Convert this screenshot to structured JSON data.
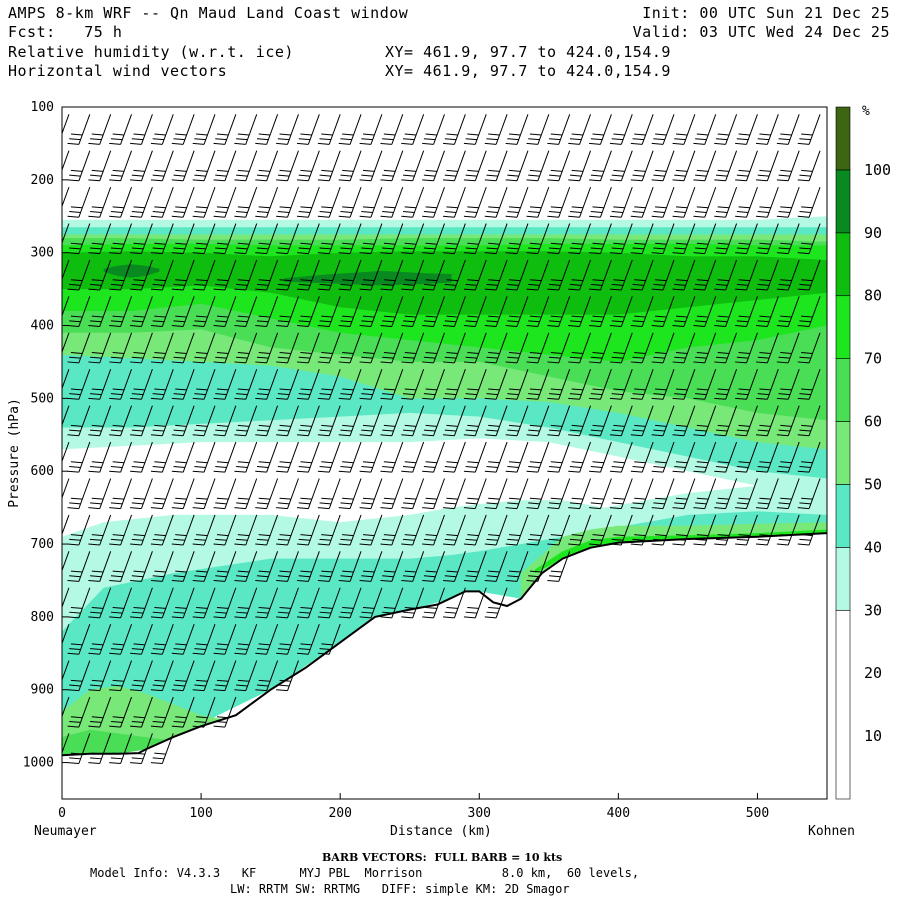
{
  "header": {
    "line1_left": "AMPS 8-km WRF -- Qn Maud Land Coast window",
    "line2_left": "Fcst:   75 h",
    "line3_left": "Relative humidity (w.r.t. ice)",
    "line4_left": "Horizontal wind vectors",
    "line1_right": "Init: 00 UTC Sun 21 Dec 25",
    "line2_right": "Valid: 03 UTC Wed 24 Dec 25",
    "line3_mid": "XY= 461.9, 97.7 to 424.0,154.9",
    "line4_mid": "XY= 461.9, 97.7 to 424.0,154.9"
  },
  "footer": {
    "barb_note": "BARB VECTORS:  FULL BARB = 10 kts",
    "model_line1": "Model Info: V4.3.3   KF      MYJ PBL  Morrison           8.0 km,  60 levels,",
    "model_line2": "LW: RRTM SW: RRTMG   DIFF: simple KM: 2D Smagor"
  },
  "chart_data": {
    "type": "heatmap",
    "title": "Relative humidity (w.r.t. ice)",
    "subtitle": "Horizontal wind vectors",
    "xlabel": "Distance (km)",
    "ylabel": "Pressure (hPa)",
    "xlim": [
      0,
      550
    ],
    "ylim": [
      1050,
      100
    ],
    "x_ticks": [
      0,
      100,
      200,
      300,
      400,
      500
    ],
    "y_ticks": [
      100,
      200,
      300,
      400,
      500,
      600,
      700,
      800,
      900,
      1000
    ],
    "x_start_label": "Neumayer",
    "x_end_label": "Kohnen",
    "colorbar": {
      "unit": "%",
      "ticks": [
        10,
        20,
        30,
        40,
        50,
        60,
        70,
        80,
        90,
        100
      ],
      "bins": [
        {
          "from": 0,
          "to": 30,
          "color": "#ffffff"
        },
        {
          "from": 30,
          "to": 40,
          "color": "#b4f9e3"
        },
        {
          "from": 40,
          "to": 50,
          "color": "#5ae8c4"
        },
        {
          "from": 50,
          "to": 60,
          "color": "#78e878"
        },
        {
          "from": 60,
          "to": 70,
          "color": "#4ade56"
        },
        {
          "from": 70,
          "to": 80,
          "color": "#1ee61e"
        },
        {
          "from": 80,
          "to": 90,
          "color": "#0fbd0f"
        },
        {
          "from": 90,
          "to": 100,
          "color": "#088a20"
        },
        {
          "from": 100,
          "to": 110,
          "color": "#3c6612"
        }
      ]
    },
    "terrain_pressure": {
      "x": [
        0,
        20,
        40,
        55,
        60,
        80,
        100,
        125,
        150,
        175,
        200,
        225,
        250,
        270,
        290,
        300,
        310,
        320,
        330,
        345,
        360,
        380,
        400,
        450,
        500,
        550
      ],
      "p": [
        990,
        988,
        988,
        987,
        982,
        965,
        950,
        935,
        900,
        870,
        835,
        800,
        790,
        783,
        765,
        765,
        780,
        785,
        775,
        740,
        720,
        705,
        698,
        693,
        690,
        685
      ]
    },
    "rh_bands": [
      {
        "x": [
          0,
          50,
          100,
          150,
          200,
          250,
          300,
          350,
          400,
          450,
          500,
          550
        ],
        "top": [
          255,
          255,
          255,
          255,
          255,
          255,
          255,
          255,
          255,
          255,
          255,
          250
        ],
        "bottom": [
          570,
          565,
          560,
          560,
          560,
          560,
          555,
          560,
          580,
          600,
          620,
          630
        ],
        "value": 35
      },
      {
        "x": [
          0,
          50,
          100,
          150,
          200,
          250,
          300,
          350,
          400,
          450,
          500,
          550
        ],
        "top": [
          265,
          265,
          265,
          265,
          265,
          265,
          265,
          265,
          265,
          265,
          265,
          265
        ],
        "bottom": [
          540,
          540,
          535,
          530,
          525,
          520,
          525,
          540,
          560,
          580,
          600,
          610
        ],
        "value": 45
      },
      {
        "x": [
          0,
          50,
          100,
          150,
          200,
          250,
          300,
          350,
          400,
          450,
          500,
          550
        ],
        "top": [
          275,
          275,
          275,
          275,
          275,
          275,
          275,
          275,
          275,
          275,
          275,
          275
        ],
        "bottom": [
          440,
          445,
          450,
          455,
          470,
          500,
          500,
          505,
          520,
          540,
          560,
          570
        ],
        "value": 55
      },
      {
        "x": [
          0,
          50,
          100,
          150,
          200,
          250,
          300,
          350,
          400,
          450,
          500,
          550
        ],
        "top": [
          280,
          280,
          282,
          282,
          282,
          280,
          280,
          280,
          282,
          282,
          282,
          285
        ],
        "bottom": [
          410,
          410,
          405,
          430,
          440,
          450,
          450,
          470,
          490,
          500,
          520,
          530
        ],
        "value": 65
      },
      {
        "x": [
          0,
          50,
          100,
          150,
          200,
          250,
          300,
          350,
          400,
          450,
          500,
          550
        ],
        "top": [
          290,
          288,
          288,
          290,
          290,
          290,
          290,
          288,
          288,
          288,
          290,
          290
        ],
        "bottom": [
          380,
          380,
          370,
          390,
          410,
          420,
          430,
          440,
          450,
          430,
          420,
          400
        ],
        "value": 75
      },
      {
        "x": [
          0,
          50,
          100,
          150,
          200,
          250,
          300,
          350,
          400,
          450,
          500,
          550
        ],
        "top": [
          300,
          298,
          300,
          305,
          300,
          298,
          298,
          298,
          300,
          305,
          305,
          310
        ],
        "bottom": [
          350,
          350,
          345,
          355,
          375,
          385,
          385,
          385,
          385,
          375,
          365,
          355
        ],
        "value": 85
      },
      {
        "x": [
          30,
          40,
          50,
          60,
          70
        ],
        "top": [
          322,
          318,
          316,
          318,
          322
        ],
        "bottom": [
          326,
          332,
          334,
          332,
          326
        ],
        "value": 95
      },
      {
        "x": [
          160,
          190,
          230,
          260,
          290,
          330,
          370
        ],
        "top": [
          335,
          330,
          325,
          328,
          330,
          332,
          335
        ],
        "bottom": [
          340,
          342,
          345,
          343,
          340,
          340,
          338
        ],
        "value": 95
      },
      {
        "x": [
          280,
          320,
          360,
          400,
          440,
          480,
          530
        ],
        "top": [
          330,
          327,
          325,
          322,
          322,
          323,
          326
        ],
        "bottom": [
          345,
          350,
          348,
          345,
          340,
          338,
          335
        ],
        "value": 85
      },
      {
        "x": [
          0,
          30,
          80,
          150,
          200,
          250,
          280,
          300,
          330,
          360,
          390,
          420,
          450,
          500,
          550
        ],
        "top": [
          690,
          670,
          660,
          660,
          670,
          660,
          650,
          645,
          640,
          640,
          650,
          640,
          630,
          620,
          620
        ],
        "bottom": [
          990,
          988,
          965,
          900,
          835,
          790,
          775,
          765,
          775,
          720,
          705,
          698,
          693,
          690,
          685
        ],
        "value": 35
      },
      {
        "x": [
          0,
          30,
          80,
          150,
          200,
          250,
          280,
          300,
          330,
          360,
          390,
          420,
          450,
          500,
          550
        ],
        "top": [
          820,
          760,
          740,
          720,
          720,
          720,
          715,
          710,
          700,
          690,
          680,
          670,
          660,
          655,
          660
        ],
        "bottom": [
          990,
          988,
          965,
          900,
          835,
          790,
          775,
          765,
          775,
          720,
          705,
          698,
          693,
          690,
          685
        ],
        "value": 45
      },
      {
        "x": [
          0,
          20,
          40,
          60,
          80,
          100,
          130
        ],
        "top": [
          930,
          900,
          895,
          905,
          920,
          935,
          945
        ],
        "bottom": [
          990,
          988,
          988,
          982,
          965,
          950,
          940
        ],
        "value": 55
      },
      {
        "x": [
          0,
          20,
          40,
          60,
          80
        ],
        "top": [
          965,
          955,
          960,
          965,
          970
        ],
        "bottom": [
          990,
          988,
          988,
          982,
          965
        ],
        "value": 65
      },
      {
        "x": [
          330,
          345,
          360,
          380,
          400,
          450,
          500,
          550
        ],
        "top": [
          740,
          715,
          690,
          680,
          675,
          675,
          672,
          670
        ],
        "bottom": [
          775,
          740,
          720,
          705,
          698,
          693,
          690,
          685
        ],
        "value": 55
      },
      {
        "x": [
          340,
          360,
          380,
          400,
          450,
          500,
          550
        ],
        "top": [
          735,
          710,
          695,
          690,
          688,
          685,
          680
        ],
        "bottom": [
          740,
          720,
          705,
          698,
          693,
          690,
          685
        ],
        "value": 75
      }
    ],
    "wind_barbs": {
      "columns_x": [
        5,
        20,
        35,
        50,
        65,
        80,
        95,
        110,
        125,
        140,
        155,
        170,
        185,
        200,
        215,
        230,
        245,
        260,
        275,
        290,
        305,
        320,
        335,
        350,
        365,
        380,
        395,
        410,
        425,
        440,
        455,
        470,
        485,
        500,
        515,
        530,
        545
      ],
      "levels_hPa": [
        110,
        160,
        210,
        260,
        310,
        360,
        410,
        460,
        510,
        560,
        610,
        660,
        710,
        760,
        810,
        860,
        910,
        960
      ],
      "speed_kts": 30,
      "direction_deg": 200
    }
  }
}
